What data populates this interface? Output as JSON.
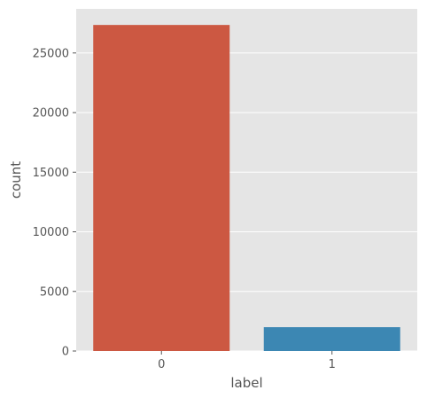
{
  "chart_data": {
    "type": "bar",
    "categories": [
      "0",
      "1"
    ],
    "values": [
      27350,
      2000
    ],
    "title": "",
    "xlabel": "label",
    "ylabel": "count",
    "ylim": [
      0,
      28700
    ],
    "yticks": [
      0,
      5000,
      10000,
      15000,
      20000,
      25000
    ],
    "ytick_labels": [
      "0",
      "5000",
      "10000",
      "15000",
      "20000",
      "25000"
    ],
    "grid": true,
    "style": "ggplot",
    "colors": {
      "background": "#E5E5E5",
      "grid": "#FFFFFF",
      "bars": [
        "#CC5842",
        "#3C87B3"
      ],
      "text": "#555555"
    }
  }
}
